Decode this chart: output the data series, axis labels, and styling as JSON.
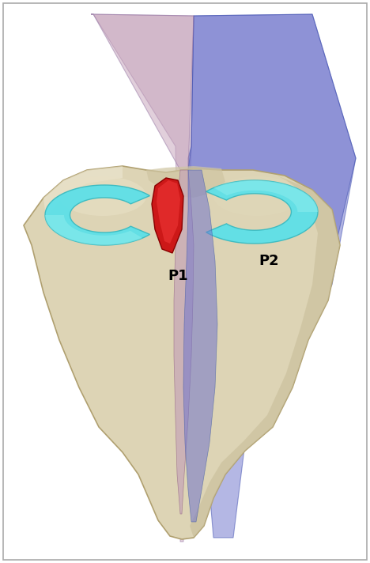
{
  "bg_color": "#ffffff",
  "bone_color": "#ddd4b5",
  "bone_highlight": "#f0ebd8",
  "bone_shadow": "#c4b898",
  "bone_dark": "#b8a87a",
  "meniscus_color": "#5de0e8",
  "meniscus_dark": "#3abac0",
  "plane1_color": "#c4a0b8",
  "plane2_color": "#7075cc",
  "lig_color": "#cc1818",
  "lig_highlight": "#ee3333",
  "label_P1": "P1",
  "label_P2": "P2",
  "label_fontsize": 13,
  "figsize": [
    4.68,
    7.12
  ],
  "dpi": 100
}
